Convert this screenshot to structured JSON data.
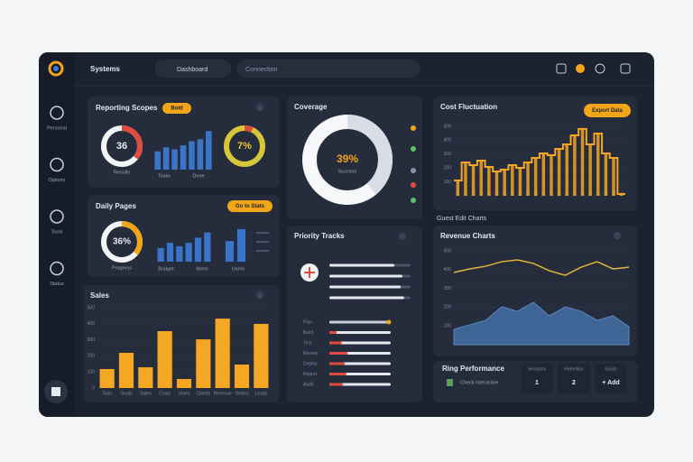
{
  "topbar": {
    "title": "Systems",
    "tab": "Dashboard",
    "search": "Connection"
  },
  "sidebar": [
    "Personal",
    "Options",
    "Tools",
    "Status"
  ],
  "reporting": {
    "title": "Reporting Scopes",
    "badge": "Bold",
    "donut_left": {
      "value": 36,
      "caption": "Results"
    },
    "bars": [
      45,
      55,
      50,
      60,
      70,
      75,
      95
    ],
    "bar_labels": [
      "Tasks",
      "Done"
    ],
    "donut_right": {
      "value": 7,
      "label": "7%"
    }
  },
  "daily": {
    "title": "Daily Pages",
    "badge": "Go to Stats",
    "donut": {
      "value": 36,
      "label": "36%",
      "caption": "Progress"
    },
    "bars": [
      40,
      55,
      45,
      55,
      70,
      85
    ],
    "bars_side": [
      60,
      95
    ],
    "bar_labels": [
      "Budget",
      "Items",
      "Users"
    ]
  },
  "sales": {
    "title": "Sales",
    "ylim": [
      0,
      500
    ],
    "yticks": [
      0,
      100,
      200,
      300,
      400,
      500
    ],
    "categories": [
      "Todo",
      "Goals",
      "Sales",
      "Costs",
      "Users",
      "Clients",
      "Revenue",
      "Orders",
      "Leads"
    ],
    "values": [
      118,
      219,
      129,
      354,
      56,
      303,
      432,
      146,
      399
    ]
  },
  "coverage": {
    "title": "Coverage",
    "donut": {
      "value": 39,
      "label": "39%",
      "caption": "Success"
    }
  },
  "priority": {
    "title": "Priority Tracks",
    "top": [
      80,
      90,
      88,
      92
    ],
    "rows": [
      {
        "label": "Plan",
        "value": 95
      },
      {
        "label": "Build",
        "value": 12
      },
      {
        "label": "Test",
        "value": 20
      },
      {
        "label": "Review",
        "value": 30
      },
      {
        "label": "Deploy",
        "value": 25
      },
      {
        "label": "Report",
        "value": 28
      },
      {
        "label": "Audit",
        "value": 22
      }
    ]
  },
  "cost": {
    "title": "Cost Fluctuation",
    "badge": "Export Data",
    "ylim": [
      0,
      500
    ],
    "yticks": [
      100,
      200,
      300,
      400,
      500
    ],
    "values": [
      110,
      240,
      221,
      253,
      208,
      175,
      188,
      221,
      201,
      240,
      273,
      305,
      292,
      338,
      370,
      435,
      481,
      370,
      448,
      305,
      273,
      13
    ],
    "volume": [
      120,
      140,
      130,
      150,
      110,
      140,
      130,
      120,
      150,
      140,
      130,
      120,
      140,
      130,
      150,
      120,
      140,
      130,
      150,
      120,
      130,
      110
    ]
  },
  "section_label": "Guest Edit Charts",
  "revenue": {
    "title": "Revenue Charts",
    "ylim": [
      0,
      500
    ],
    "yticks": [
      100,
      200,
      300,
      400,
      500
    ],
    "line": [
      385,
      404,
      418,
      442,
      452,
      433,
      394,
      370,
      413,
      442,
      404,
      413
    ],
    "area": [
      82,
      106,
      130,
      202,
      178,
      226,
      154,
      202,
      178,
      130,
      154,
      96
    ]
  },
  "performance": {
    "title": "Ring Performance",
    "row": "Check Interactive",
    "stats": [
      {
        "label": "Sessions",
        "value": "1"
      },
      {
        "label": "Retention",
        "value": "2"
      },
      {
        "label": "Goals",
        "value": "+ Add"
      }
    ]
  }
}
